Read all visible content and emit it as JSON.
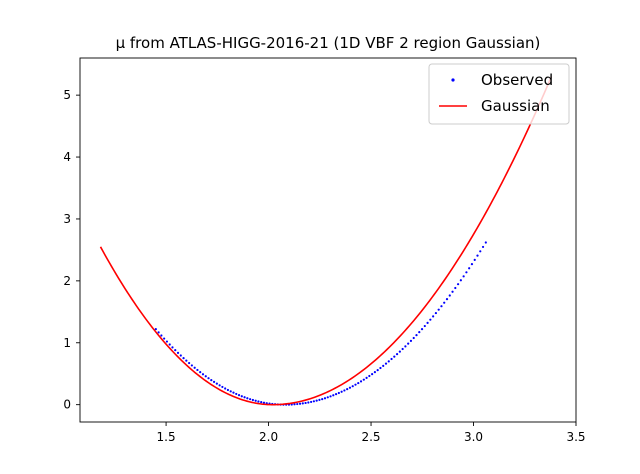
{
  "chart_data": {
    "type": "scatter",
    "title": "μ from ATLAS-HIGG-2016-21 (1D VBF 2 region Gaussian)",
    "xlabel": "",
    "ylabel": "",
    "xlim": [
      1.08,
      3.5
    ],
    "ylim": [
      -0.28,
      5.6
    ],
    "xticks": [
      "1.5",
      "2.0",
      "2.5",
      "3.0",
      "3.5"
    ],
    "yticks": [
      "0",
      "1",
      "2",
      "3",
      "4",
      "5"
    ],
    "grid": false,
    "legend_position": "top-right",
    "series": [
      {
        "name": "Observed",
        "kind": "points",
        "color": "#0000ff",
        "x_range": [
          1.45,
          3.06
        ],
        "count": 120,
        "minimum": [
          2.08,
          0.0
        ],
        "values_at": {
          "1.45": 1.22,
          "1.75": 0.26,
          "2.5": 0.52,
          "3.0": 2.38,
          "3.06": 2.62
        }
      },
      {
        "name": "Gaussian",
        "kind": "line",
        "color": "#ff0000",
        "x_range": [
          1.18,
          3.38
        ],
        "minimum": [
          2.02,
          0.0
        ],
        "values_at": {
          "1.18": 2.55,
          "1.5": 0.98,
          "2.5": 0.82,
          "3.0": 3.07,
          "3.38": 5.3
        }
      }
    ]
  }
}
